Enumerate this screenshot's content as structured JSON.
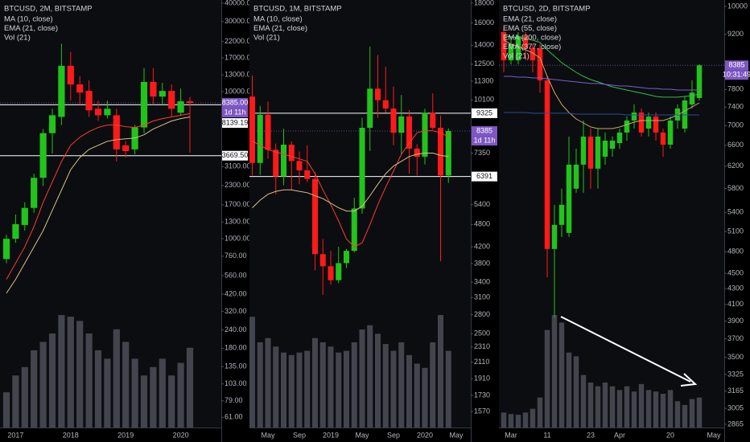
{
  "chart_data": [
    {
      "type": "candlestick",
      "title": "BTCUSD, 2M, BITSTAMP",
      "log_scale": true,
      "up_color": "#22c31c",
      "down_color": "#ff1a1a",
      "categories": [
        null,
        "2017",
        null,
        null,
        null,
        null,
        null,
        "2018",
        null,
        null,
        null,
        null,
        null,
        "2019",
        null,
        null,
        null,
        null,
        null,
        "2020",
        null
      ],
      "open": [
        727,
        999,
        1240,
        1620,
        2595,
        5220,
        6735,
        15000,
        11200,
        10120,
        7650,
        6910,
        6910,
        4315,
        4050,
        5710,
        11640,
        9260,
        10120,
        7190,
        8600
      ],
      "high": [
        1064,
        1463,
        1770,
        2765,
        5565,
        7650,
        21160,
        18620,
        12720,
        11940,
        8690,
        8690,
        7650,
        4600,
        5930,
        14450,
        14450,
        11490,
        11200,
        10500,
        9200
      ],
      "low": [
        682,
        938,
        1135,
        1500,
        2285,
        3800,
        5930,
        8690,
        8150,
        6735,
        6320,
        6560,
        3345,
        3565,
        3750,
        5220,
        8150,
        8150,
        6735,
        6850,
        3850
      ],
      "close": [
        999,
        1256,
        1620,
        2595,
        5220,
        6910,
        15000,
        11200,
        9860,
        7460,
        6910,
        7650,
        4050,
        3945,
        5710,
        11640,
        9260,
        10120,
        7650,
        8600,
        8385
      ],
      "series": [
        {
          "name": "MA (10, close)",
          "color": "#ff3b30",
          "values": [
            529,
            682,
            880,
            1209,
            1770,
            2434,
            3345,
            4315,
            4899,
            5356,
            5710,
            5930,
            5930,
            5781,
            5710,
            5930,
            6320,
            6560,
            6735,
            6910,
            7087
          ]
        },
        {
          "name": "EMA (21, close)",
          "color": "#d9c08a",
          "values": [
            426,
            529,
            682,
            880,
            1135,
            1560,
            2143,
            2946,
            3565,
            4050,
            4315,
            4600,
            4716,
            4776,
            4837,
            5089,
            5565,
            5930,
            6320,
            6560,
            6735
          ]
        }
      ],
      "volume": {
        "name": "Vol (21)",
        "color": "#4d5059",
        "values": [
          42,
          62,
          72,
          92,
          102,
          112,
          134,
          132,
          127,
          112,
          92,
          82,
          117,
          102,
          82,
          62,
          72,
          82,
          62,
          77,
          95
        ]
      },
      "ylim": [
        52,
        42000
      ],
      "yticks": [
        {
          "value": 40000,
          "label": "40000.00"
        },
        {
          "value": 30000,
          "label": "30000.00"
        },
        {
          "value": 22000,
          "label": "22000.00"
        },
        {
          "value": 17000,
          "label": "17000.00"
        },
        {
          "value": 13000,
          "label": "13000.00"
        },
        {
          "value": 10000,
          "label": "10000.00"
        },
        {
          "value": 3100,
          "label": "3100.00"
        },
        {
          "value": 2300,
          "label": "2300.00"
        },
        {
          "value": 1700,
          "label": "1700.00"
        },
        {
          "value": 1300,
          "label": "1300.00"
        },
        {
          "value": 1000,
          "label": "1000.00"
        },
        {
          "value": 760,
          "label": "760.00"
        },
        {
          "value": 560,
          "label": "560.00"
        },
        {
          "value": 420,
          "label": "420.00"
        },
        {
          "value": 320,
          "label": "320.00"
        },
        {
          "value": 240,
          "label": "240.00"
        },
        {
          "value": 180,
          "label": "180.00"
        },
        {
          "value": 135,
          "label": "135.00"
        },
        {
          "value": 103,
          "label": "103.00"
        },
        {
          "value": 79,
          "label": "79.00"
        },
        {
          "value": 61,
          "label": "61.00"
        }
      ],
      "price_lines": [
        {
          "value": 8139.19,
          "label": "8139.19"
        },
        {
          "value": 3669.5,
          "label": "3669.50"
        }
      ],
      "last_price": {
        "value": 8385,
        "label": "8385.00",
        "countdown": "1d 11h",
        "color": "#7e57c2"
      }
    },
    {
      "type": "candlestick",
      "title": "BTCUSD, 1M, BITSTAMP",
      "log_scale": true,
      "up_color": "#22c31c",
      "down_color": "#ff1a1a",
      "categories": [
        null,
        null,
        "May",
        null,
        null,
        null,
        "Sep",
        null,
        null,
        null,
        "2019",
        null,
        null,
        null,
        "May",
        null,
        null,
        null,
        "Sep",
        null,
        null,
        null,
        "2020",
        null,
        null,
        null,
        "May"
      ],
      "open": [
        10300,
        6930,
        9240,
        7500,
        6390,
        7730,
        7010,
        6630,
        6300,
        4020,
        3740,
        3440,
        3810,
        4100,
        5280,
        8550,
        10800,
        10080,
        9590,
        8300,
        9150,
        7550,
        7190,
        9350,
        8550,
        6430,
        null
      ],
      "high": [
        11700,
        9750,
        10000,
        7780,
        8500,
        7880,
        7420,
        7700,
        6560,
        4400,
        4100,
        4200,
        4150,
        5630,
        9080,
        13880,
        13200,
        12300,
        10950,
        10400,
        9510,
        7750,
        9580,
        10500,
        9200,
        8520,
        null
      ],
      "low": [
        6430,
        6450,
        7100,
        5750,
        6070,
        5880,
        6100,
        6180,
        3650,
        3150,
        3350,
        3380,
        3700,
        4060,
        5120,
        7450,
        9070,
        9350,
        7700,
        7300,
        6500,
        6430,
        6870,
        8450,
        3850,
        6150,
        null
      ],
      "close": [
        6930,
        9240,
        7500,
        6390,
        7730,
        7010,
        6630,
        6300,
        4020,
        3740,
        3440,
        3810,
        4100,
        5280,
        8550,
        10800,
        10080,
        9590,
        8300,
        9150,
        7550,
        7190,
        9350,
        8550,
        6430,
        8385,
        null
      ],
      "series": [
        {
          "name": "MA (10, close)",
          "color": "#ff3b30",
          "values": [
            7900,
            7700,
            7500,
            7400,
            7300,
            7200,
            7100,
            7000,
            6500,
            5900,
            5400,
            4900,
            4400,
            4200,
            4300,
            4800,
            5400,
            6000,
            6600,
            7300,
            7800,
            8300,
            8400,
            8400,
            8300,
            8100,
            null
          ]
        },
        {
          "name": "EMA (21, close)",
          "color": "#d9c08a",
          "values": [
            5300,
            5550,
            5750,
            5850,
            5900,
            5900,
            5850,
            5800,
            5700,
            5600,
            5450,
            5300,
            5200,
            5200,
            5350,
            5700,
            6100,
            6500,
            6800,
            7000,
            7200,
            7300,
            7350,
            7350,
            7250,
            7200,
            null
          ]
        }
      ],
      "volume": {
        "name": "Vol (21)",
        "color": "#4d5059",
        "values": [
          130,
          100,
          105,
          95,
          88,
          85,
          88,
          90,
          105,
          100,
          95,
          88,
          90,
          100,
          115,
          120,
          110,
          98,
          90,
          100,
          85,
          75,
          70,
          100,
          132,
          90,
          null
        ]
      },
      "ylim": [
        1427,
        18340
      ],
      "yticks": [
        18000,
        16000,
        14000,
        12500,
        11300,
        10100,
        7350,
        5400,
        4800,
        4200,
        3800,
        3400,
        3100,
        2800,
        2500,
        2310,
        2110,
        1910,
        1730,
        1570
      ],
      "price_lines": [
        {
          "value": 9325,
          "label": "9325"
        },
        {
          "value": 6391,
          "label": "6391"
        }
      ],
      "last_price": {
        "value": 8385,
        "label": "8385",
        "countdown": "1d 11h",
        "color": "#7e57c2"
      }
    },
    {
      "type": "candlestick",
      "title": "BTCUSD, 2D, BITSTAMP",
      "log_scale": true,
      "up_color": "#22c31c",
      "down_color": "#ff1a1a",
      "categories": [
        null,
        "Mar",
        null,
        null,
        null,
        null,
        "11",
        null,
        null,
        null,
        null,
        null,
        "23",
        null,
        null,
        null,
        "Apr",
        null,
        null,
        null,
        null,
        null,
        null,
        "20",
        null,
        null,
        null,
        null,
        null,
        "May"
      ],
      "open": [
        9260,
        8511,
        8511,
        9150,
        8826,
        8826,
        8016,
        4840,
        5202,
        5078,
        5797,
        6229,
        6775,
        6155,
        6379,
        6534,
        6645,
        6857,
        7108,
        7281,
        6939,
        7193,
        6857,
        6613,
        7108,
        6939,
        7459,
        7603,
        null,
        null
      ],
      "high": [
        9371,
        9150,
        9260,
        9260,
        8933,
        8933,
        8112,
        5524,
        5797,
        6775,
        6534,
        7108,
        6939,
        6939,
        6857,
        6775,
        6939,
        7193,
        7459,
        7369,
        7281,
        7281,
        6939,
        7193,
        7459,
        7640,
        8016,
        8410,
        null,
        null
      ],
      "low": [
        8210,
        8410,
        8410,
        8511,
        8210,
        7728,
        4448,
        3947,
        5017,
        5017,
        5727,
        5727,
        5797,
        5797,
        6229,
        6379,
        6534,
        6693,
        6939,
        6775,
        6775,
        6693,
        6379,
        6534,
        6939,
        6857,
        7369,
        7549,
        null,
        null
      ],
      "close": [
        8511,
        8933,
        9150,
        8826,
        8511,
        8016,
        4840,
        5202,
        5524,
        6229,
        6229,
        6775,
        6155,
        6775,
        6693,
        6693,
        6857,
        7108,
        7281,
        6857,
        7193,
        6857,
        6613,
        7108,
        7369,
        7549,
        7728,
        8385,
        null,
        null
      ],
      "series": [
        {
          "name": "EMA (21, close)",
          "color": "#c8a96a",
          "values": [
            9040,
            8933,
            8868,
            8783,
            8700,
            8576,
            8112,
            7731,
            7459,
            7281,
            7142,
            7057,
            6972,
            6939,
            6939,
            6939,
            6972,
            7023,
            7074,
            7108,
            7108,
            7108,
            7108,
            7159,
            7229,
            7315,
            7402,
            7494,
            null,
            null
          ]
        },
        {
          "name": "EMA (55, close)",
          "color": "#2fbf4a",
          "values": [
            9150,
            9128,
            9106,
            9084,
            9040,
            8976,
            8783,
            8617,
            8451,
            8330,
            8210,
            8112,
            8035,
            7978,
            7920,
            7863,
            7824,
            7788,
            7751,
            7714,
            7677,
            7640,
            7622,
            7622,
            7622,
            7640,
            7658,
            7695,
            null,
            null
          ]
        },
        {
          "name": "EMA (200, close)",
          "color": "#7b5cd6",
          "values": [
            8112,
            8112,
            8093,
            8093,
            8073,
            8073,
            8054,
            8035,
            8016,
            7997,
            7978,
            7959,
            7940,
            7940,
            7920,
            7901,
            7882,
            7882,
            7863,
            7844,
            7824,
            7824,
            7806,
            7806,
            7788,
            7788,
            7788,
            7788,
            null,
            null
          ]
        },
        {
          "name": "EMA (377, close)",
          "color": "#2b4c9b",
          "values": [
            7281,
            7281,
            7281,
            7281,
            7264,
            7264,
            7264,
            7264,
            7264,
            7264,
            7246,
            7246,
            7246,
            7246,
            7246,
            7246,
            7246,
            7229,
            7229,
            7229,
            7229,
            7229,
            7229,
            7229,
            7229,
            7229,
            7229,
            7229,
            null,
            null
          ]
        }
      ],
      "volume": {
        "name": "Vol (21)",
        "color": "#4d5059",
        "values": [
          20,
          18,
          17,
          20,
          25,
          40,
          130,
          150,
          140,
          100,
          95,
          70,
          60,
          55,
          60,
          55,
          50,
          55,
          48,
          58,
          50,
          48,
          45,
          50,
          35,
          30,
          38,
          40,
          null,
          null
        ]
      },
      "ylim": [
        2837,
        10194
      ],
      "yticks": [
        10000,
        9200,
        7800,
        7400,
        7000,
        6600,
        6200,
        5800,
        5400,
        5100,
        4800,
        4500,
        4300,
        4100,
        3900,
        3700,
        3500,
        3325,
        3165,
        3005,
        2865
      ],
      "last_price": {
        "value": 8385,
        "label": "8385",
        "countdown": "10:31:49",
        "color": "#7e57c2"
      }
    }
  ]
}
